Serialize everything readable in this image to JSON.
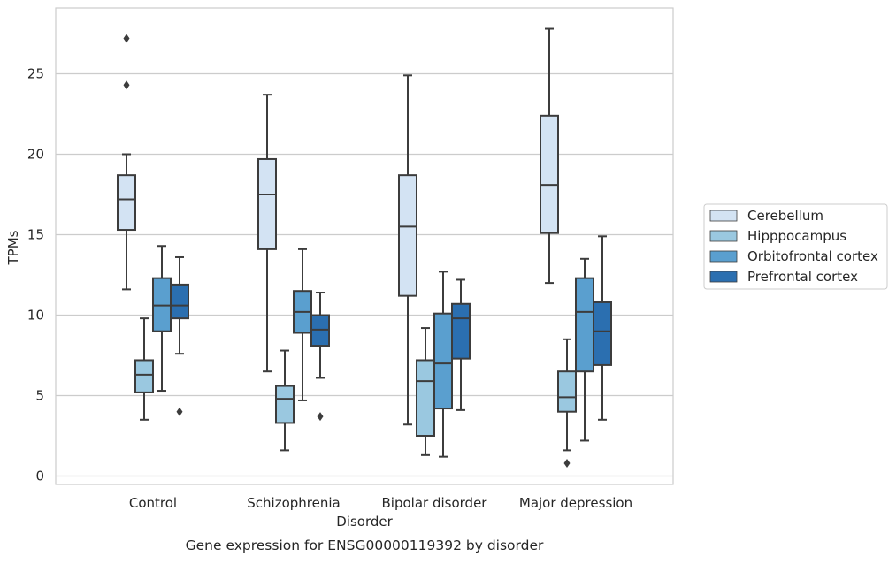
{
  "chart_data": {
    "type": "box",
    "title": "Gene expression for ENSG00000119392 by disorder",
    "xlabel": "Disorder",
    "ylabel": "TPMs",
    "ylim": [
      -0.5,
      29.5
    ],
    "yticks": [
      0,
      5,
      10,
      15,
      20,
      25
    ],
    "grid": "horizontal",
    "legend_position": "right",
    "categories": [
      "Control",
      "Schizophrenia",
      "Bipolar disorder",
      "Major depression"
    ],
    "series": [
      {
        "name": "Cerebellum",
        "color": "#d3e3f3",
        "boxes": [
          {
            "whisker_low": 11.6,
            "q1": 15.3,
            "median": 17.2,
            "q3": 18.7,
            "whisker_high": 20.0,
            "outliers": [
              24.3,
              27.2
            ]
          },
          {
            "whisker_low": 6.5,
            "q1": 14.1,
            "median": 17.5,
            "q3": 19.7,
            "whisker_high": 23.7,
            "outliers": []
          },
          {
            "whisker_low": 3.2,
            "q1": 11.2,
            "median": 15.5,
            "q3": 18.7,
            "whisker_high": 24.9,
            "outliers": []
          },
          {
            "whisker_low": 12.0,
            "q1": 15.1,
            "median": 18.1,
            "q3": 22.4,
            "whisker_high": 27.8,
            "outliers": []
          }
        ]
      },
      {
        "name": "Hipppocampus",
        "color": "#9ac8e0",
        "boxes": [
          {
            "whisker_low": 3.5,
            "q1": 5.2,
            "median": 6.3,
            "q3": 7.2,
            "whisker_high": 9.8,
            "outliers": []
          },
          {
            "whisker_low": 1.6,
            "q1": 3.3,
            "median": 4.8,
            "q3": 5.6,
            "whisker_high": 7.8,
            "outliers": []
          },
          {
            "whisker_low": 1.3,
            "q1": 2.5,
            "median": 5.9,
            "q3": 7.2,
            "whisker_high": 9.2,
            "outliers": []
          },
          {
            "whisker_low": 1.6,
            "q1": 4.0,
            "median": 4.9,
            "q3": 6.5,
            "whisker_high": 8.5,
            "outliers": [
              0.8
            ]
          }
        ]
      },
      {
        "name": "Orbitofrontal cortex",
        "color": "#5a9fcf",
        "boxes": [
          {
            "whisker_low": 5.3,
            "q1": 9.0,
            "median": 10.6,
            "q3": 12.3,
            "whisker_high": 14.3,
            "outliers": []
          },
          {
            "whisker_low": 4.7,
            "q1": 8.9,
            "median": 10.2,
            "q3": 11.5,
            "whisker_high": 14.1,
            "outliers": []
          },
          {
            "whisker_low": 1.2,
            "q1": 4.2,
            "median": 7.0,
            "q3": 10.1,
            "whisker_high": 12.7,
            "outliers": []
          },
          {
            "whisker_low": 2.2,
            "q1": 6.5,
            "median": 10.2,
            "q3": 12.3,
            "whisker_high": 13.5,
            "outliers": []
          }
        ]
      },
      {
        "name": "Prefrontal cortex",
        "color": "#2b6fb0",
        "boxes": [
          {
            "whisker_low": 7.6,
            "q1": 9.8,
            "median": 10.6,
            "q3": 11.9,
            "whisker_high": 13.6,
            "outliers": [
              4.0
            ]
          },
          {
            "whisker_low": 6.1,
            "q1": 8.1,
            "median": 9.1,
            "q3": 10.0,
            "whisker_high": 11.4,
            "outliers": [
              3.7
            ]
          },
          {
            "whisker_low": 4.1,
            "q1": 7.3,
            "median": 9.8,
            "q3": 10.7,
            "whisker_high": 12.2,
            "outliers": []
          },
          {
            "whisker_low": 3.5,
            "q1": 6.9,
            "median": 9.0,
            "q3": 10.8,
            "whisker_high": 14.9,
            "outliers": []
          }
        ]
      }
    ]
  }
}
